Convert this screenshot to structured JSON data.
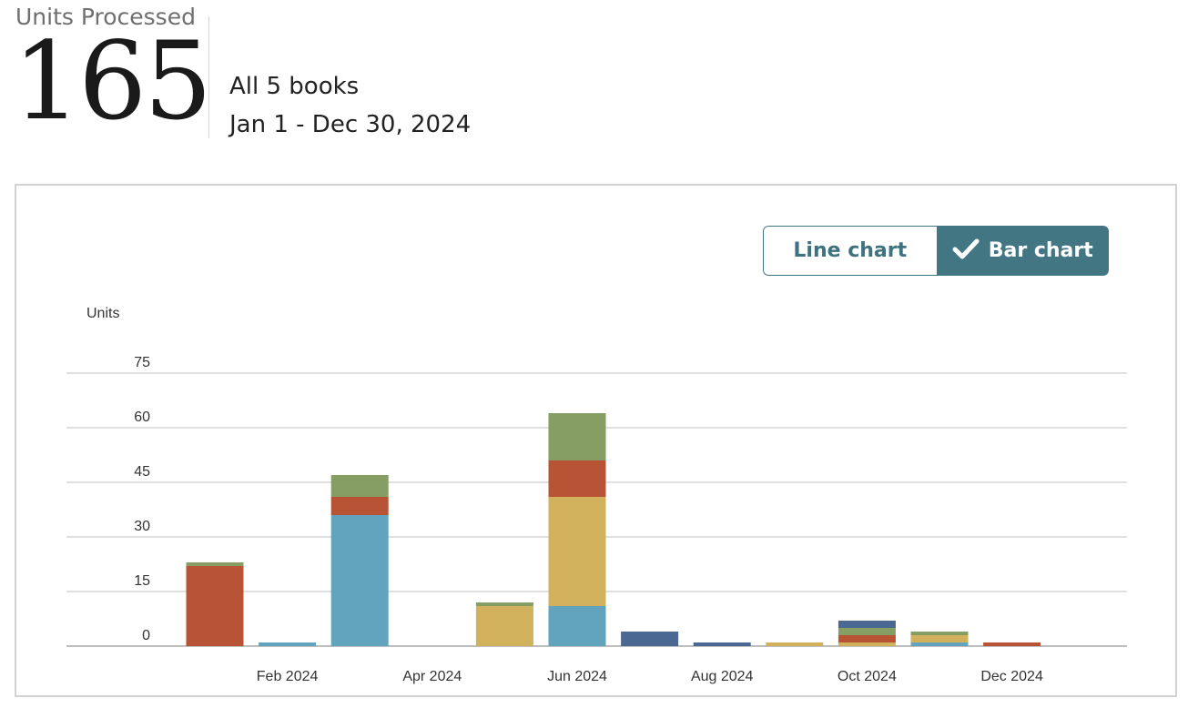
{
  "header": {
    "metric_label": "Units Processed",
    "metric_value": "165",
    "scope_label": "All 5 books",
    "date_range": "Jan 1 - Dec 30, 2024"
  },
  "toggle": {
    "line_label": "Line chart",
    "bar_label": "Bar chart",
    "selected": "bar"
  },
  "colors": {
    "accent": "#427683",
    "series": [
      "#62a4bd",
      "#d2b15d",
      "#b85335",
      "#869d63",
      "#4b6892"
    ]
  },
  "chart_data": {
    "type": "bar",
    "stacked": true,
    "ylabel": "Units",
    "ylim": [
      0,
      75
    ],
    "yticks": [
      0,
      15,
      30,
      45,
      60,
      75
    ],
    "grid": true,
    "categories": [
      "Jan 2024",
      "Feb 2024",
      "Mar 2024",
      "Apr 2024",
      "May 2024",
      "Jun 2024",
      "Jul 2024",
      "Aug 2024",
      "Sep 2024",
      "Oct 2024",
      "Nov 2024",
      "Dec 2024"
    ],
    "xtick_labels": [
      "Feb 2024",
      "Apr 2024",
      "Jun 2024",
      "Aug 2024",
      "Oct 2024",
      "Dec 2024"
    ],
    "series": [
      {
        "color": "#62a4bd",
        "values": [
          0,
          1,
          36,
          0,
          0,
          11,
          0,
          0,
          0,
          0,
          1,
          0
        ]
      },
      {
        "color": "#d2b15d",
        "values": [
          0,
          0,
          0,
          0,
          11,
          30,
          0,
          0,
          1,
          1,
          2,
          0
        ]
      },
      {
        "color": "#b85335",
        "values": [
          22,
          0,
          5,
          0,
          0,
          10,
          0,
          0,
          0,
          2,
          0,
          1
        ]
      },
      {
        "color": "#869d63",
        "values": [
          1,
          0,
          6,
          0,
          1,
          13,
          0,
          0,
          0,
          2,
          1,
          0
        ]
      },
      {
        "color": "#4b6892",
        "values": [
          0,
          0,
          0,
          0,
          0,
          0,
          4,
          1,
          0,
          2,
          0,
          0
        ]
      }
    ]
  }
}
